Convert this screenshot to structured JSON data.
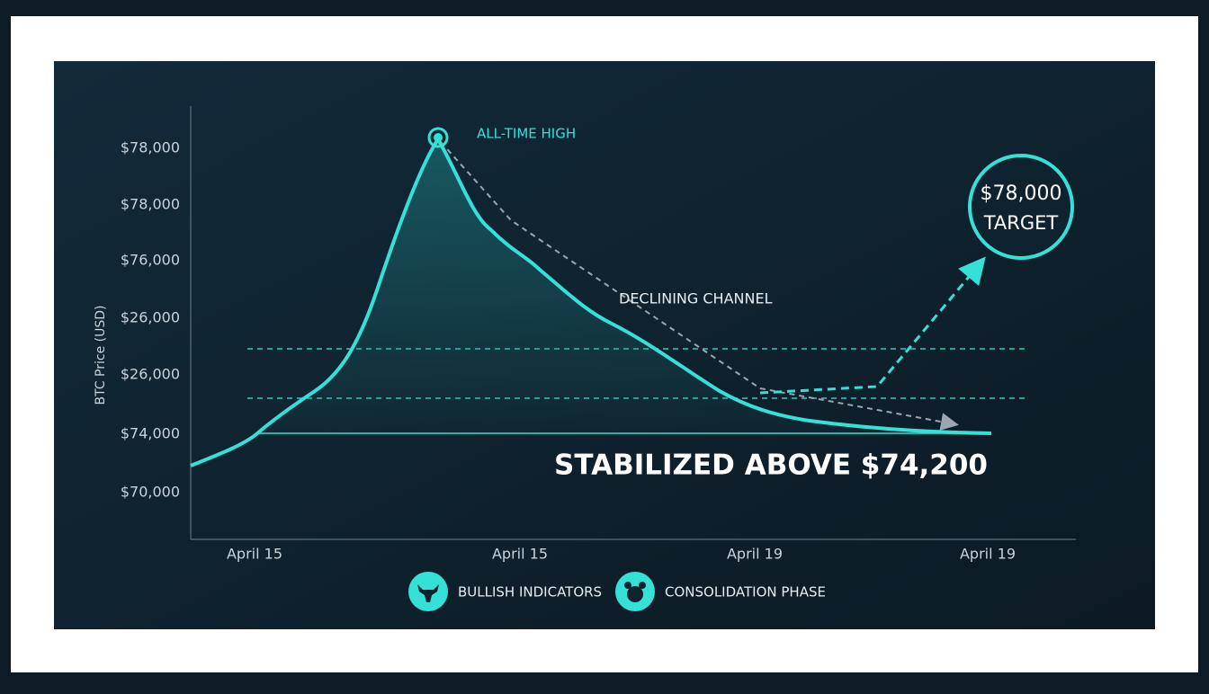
{
  "y_axis_title": "BTC Price (USD)",
  "y_axis_labels": [
    "$78,000",
    "$78,000",
    "$76,000",
    "$26,000",
    "$26,000",
    "$74,000",
    "$70,000"
  ],
  "x_axis_labels": [
    "April 15",
    "April 15",
    "April 19",
    "April 19"
  ],
  "annotations": {
    "peak": "ALL-TIME HIGH",
    "channel": "DECLINING CHANNEL",
    "stabilized": "STABILIZED ABOVE $74,200",
    "target_value": "$78,000",
    "target_label": "TARGET"
  },
  "legend": [
    "BULLISH INDICATORS",
    "CONSOLIDATION PHASE"
  ]
}
